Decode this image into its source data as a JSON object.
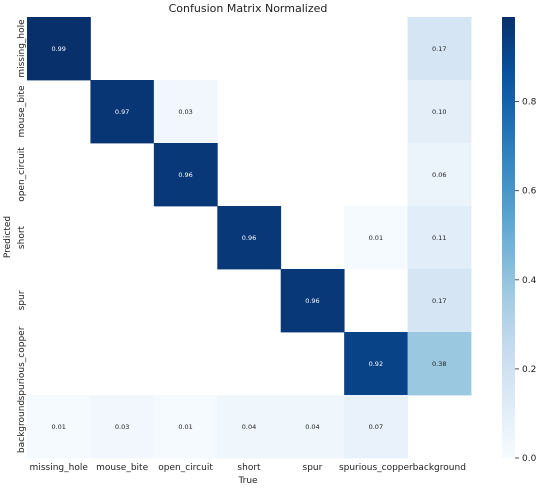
{
  "chart_data": {
    "type": "heatmap",
    "title": "Confusion Matrix Normalized",
    "xlabel": "True",
    "ylabel": "Predicted",
    "x_categories": [
      "missing_hole",
      "mouse_bite",
      "open_circuit",
      "short",
      "spur",
      "spurious_copper",
      "background"
    ],
    "y_categories": [
      "missing_hole",
      "mouse_bite",
      "open_circuit",
      "short",
      "spur",
      "spurious_copper",
      "background"
    ],
    "matrix": [
      [
        0.99,
        null,
        null,
        null,
        null,
        null,
        0.17
      ],
      [
        null,
        0.97,
        0.03,
        null,
        null,
        null,
        0.1
      ],
      [
        null,
        null,
        0.96,
        null,
        null,
        null,
        0.06
      ],
      [
        null,
        null,
        null,
        0.96,
        null,
        0.01,
        0.11
      ],
      [
        null,
        null,
        null,
        null,
        0.96,
        null,
        0.17
      ],
      [
        null,
        null,
        null,
        null,
        null,
        0.92,
        0.38
      ],
      [
        0.01,
        0.03,
        0.01,
        0.04,
        0.04,
        0.07,
        null
      ]
    ],
    "colorbar": {
      "ticks": [
        "0.0",
        "0.2",
        "0.4",
        "0.6",
        "0.8"
      ],
      "range": [
        0,
        0.99
      ],
      "colormap": "Blues"
    },
    "grid": false,
    "legend": "colorbar-right"
  }
}
